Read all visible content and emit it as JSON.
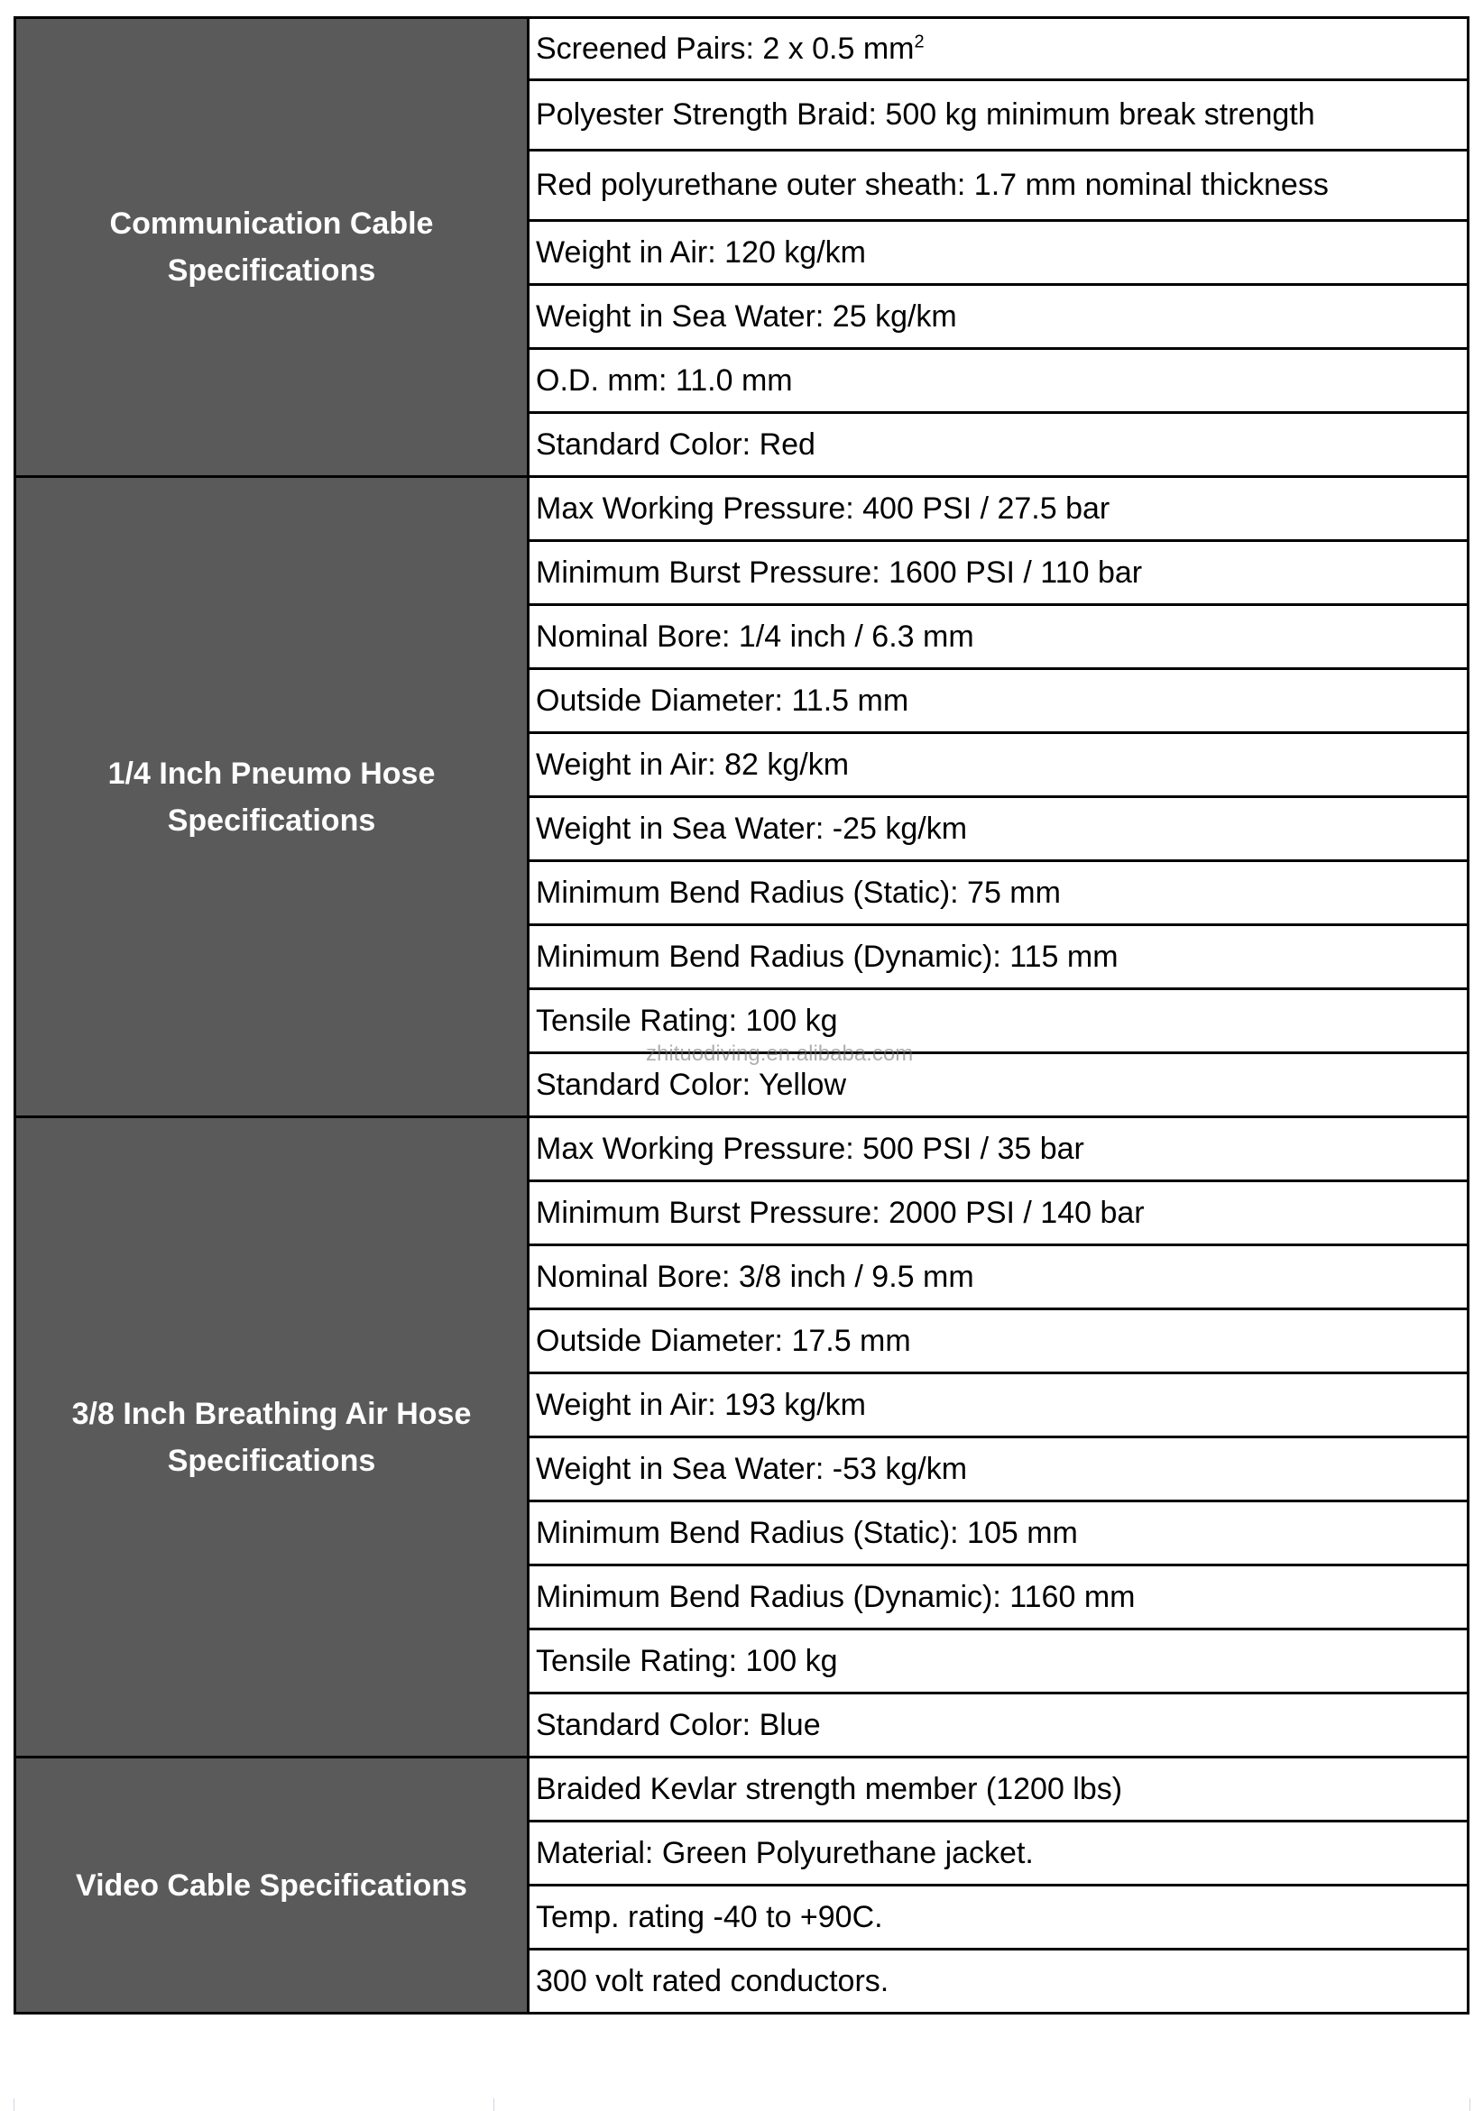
{
  "sections": [
    {
      "title": "Communication Cable Specifications",
      "items": [
        "Screened Pairs: 2 x 0.5 mm",
        "Polyester Strength Braid: 500 kg minimum break strength",
        "Red polyurethane outer sheath: 1.7 mm nominal thickness",
        "Weight in Air: 120 kg/km",
        "Weight in Sea Water: 25 kg/km",
        "O.D. mm: 11.0 mm",
        "Standard Color: Red"
      ]
    },
    {
      "title": "1/4 Inch Pneumo Hose Specifications",
      "items": [
        "Max Working Pressure: 400 PSI / 27.5 bar",
        "Minimum Burst Pressure: 1600 PSI / 110 bar",
        "Nominal Bore: 1/4 inch / 6.3 mm",
        "Outside Diameter: 11.5 mm",
        "Weight in Air: 82 kg/km",
        "Weight in Sea Water: -25 kg/km",
        "Minimum Bend Radius (Static): 75 mm",
        "Minimum Bend Radius (Dynamic): 115 mm",
        "Tensile Rating: 100 kg",
        "Standard Color: Yellow"
      ]
    },
    {
      "title": "3/8 Inch Breathing Air Hose Specifications",
      "items": [
        "Max Working Pressure: 500 PSI / 35 bar",
        "Minimum Burst Pressure: 2000 PSI / 140 bar",
        "Nominal Bore: 3/8 inch / 9.5 mm",
        "Outside Diameter: 17.5 mm",
        "Weight in Air: 193 kg/km",
        "Weight in Sea Water: -53 kg/km",
        "Minimum Bend Radius (Static): 105 mm",
        "Minimum Bend Radius (Dynamic): 1160 mm",
        "Tensile Rating: 100 kg",
        "Standard Color: Blue"
      ]
    },
    {
      "title": "Video Cable Specifications",
      "items": [
        "Braided Kevlar strength member (1200 lbs)",
        "Material: Green Polyurethane jacket.",
        "Temp. rating -40 to +90C.",
        "300 volt rated conductors."
      ]
    }
  ],
  "superscript": "2",
  "watermark": "zhituodiving.en.alibaba.com",
  "colors": {
    "category_bg": "#5a5a5a",
    "category_text": "#ffffff",
    "border": "#000000"
  }
}
